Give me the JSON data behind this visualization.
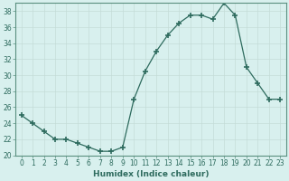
{
  "x": [
    0,
    1,
    2,
    3,
    4,
    5,
    6,
    7,
    8,
    9,
    10,
    11,
    12,
    13,
    14,
    15,
    16,
    17,
    18,
    19,
    20,
    21,
    22,
    23
  ],
  "y": [
    25,
    24,
    23,
    22,
    22,
    21.5,
    21,
    20.5,
    20.5,
    21,
    27,
    30.5,
    33,
    35,
    36.5,
    37.5,
    37.5,
    37,
    39,
    37.5,
    31,
    29,
    27,
    27
  ],
  "line_color": "#2e6b5e",
  "marker": "+",
  "marker_size": 4,
  "marker_linewidth": 1.2,
  "bg_color": "#d8f0ee",
  "grid_color": "#c4dcd8",
  "xlabel": "Humidex (Indice chaleur)",
  "ylabel": "",
  "xlim": [
    -0.5,
    23.5
  ],
  "ylim": [
    20,
    39
  ],
  "yticks": [
    20,
    22,
    24,
    26,
    28,
    30,
    32,
    34,
    36,
    38
  ],
  "xticks": [
    0,
    1,
    2,
    3,
    4,
    5,
    6,
    7,
    8,
    9,
    10,
    11,
    12,
    13,
    14,
    15,
    16,
    17,
    18,
    19,
    20,
    21,
    22,
    23
  ],
  "xtick_labels": [
    "0",
    "1",
    "2",
    "3",
    "4",
    "5",
    "6",
    "7",
    "8",
    "9",
    "10",
    "11",
    "12",
    "13",
    "14",
    "15",
    "16",
    "17",
    "18",
    "19",
    "20",
    "21",
    "22",
    "23"
  ],
  "tick_color": "#2e6b5e",
  "axis_color": "#5a9080",
  "label_fontsize": 6.5,
  "tick_fontsize": 5.5,
  "line_width": 0.9
}
